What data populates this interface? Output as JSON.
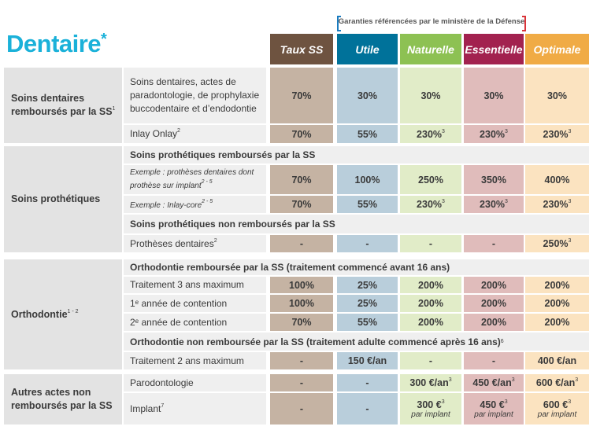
{
  "title": "Dentaire",
  "title_mark": "*",
  "bracket_label": "Garanties référencées par le ministère de la Défense",
  "columns": [
    {
      "label": "Taux SS",
      "header_color": "#6e5340",
      "cell_color": "#c5b3a3"
    },
    {
      "label": "Utile",
      "header_color": "#00729a",
      "cell_color": "#b9cedb"
    },
    {
      "label": "Naturelle",
      "header_color": "#8dc153",
      "cell_color": "#e1ecc8"
    },
    {
      "label": "Essentielle",
      "header_color": "#a2224f",
      "cell_color": "#e0bcbb"
    },
    {
      "label": "Optimale",
      "header_color": "#f0ab45",
      "cell_color": "#fbe3c0"
    }
  ],
  "sections": [
    {
      "title": "Soins dentaires remboursés par la SS",
      "sup": "1",
      "rows": [
        {
          "label": "Soins dentaires, actes de paradontologie, de prophylaxie buccodentaire et d’endodontie",
          "values": [
            {
              "v": "70%"
            },
            {
              "v": "30%"
            },
            {
              "v": "30%"
            },
            {
              "v": "30%"
            },
            {
              "v": "30%"
            }
          ]
        },
        {
          "label": "Inlay Onlay",
          "sup": "2",
          "values": [
            {
              "v": "70%"
            },
            {
              "v": "55%"
            },
            {
              "v": "230%",
              "sup": "3"
            },
            {
              "v": "230%",
              "sup": "3"
            },
            {
              "v": "230%",
              "sup": "3"
            }
          ]
        }
      ]
    },
    {
      "title": "Soins prothétiques",
      "rows": [
        {
          "sub": "Soins prothétiques remboursés par la SS"
        },
        {
          "label": "Exemple : prothèses dentaires dont prothèse sur implant",
          "sup": "2 - 5",
          "italic": true,
          "values": [
            {
              "v": "70%"
            },
            {
              "v": "100%"
            },
            {
              "v": "250%"
            },
            {
              "v": "350%"
            },
            {
              "v": "400%"
            }
          ]
        },
        {
          "label": "Exemple : Inlay-core",
          "sup": "2 - 5",
          "italic": true,
          "values": [
            {
              "v": "70%"
            },
            {
              "v": "55%"
            },
            {
              "v": "230%",
              "sup": "3"
            },
            {
              "v": "230%",
              "sup": "3"
            },
            {
              "v": "230%",
              "sup": "3"
            }
          ]
        },
        {
          "sub": "Soins prothétiques non remboursés par la SS"
        },
        {
          "label": "Prothèses dentaires",
          "sup": "2",
          "values": [
            {
              "v": "-"
            },
            {
              "v": "-"
            },
            {
              "v": "-"
            },
            {
              "v": "-"
            },
            {
              "v": "250%",
              "sup": "3"
            }
          ]
        }
      ]
    },
    {
      "title": "Orthodontie",
      "sup": "1 - 2",
      "rows": [
        {
          "sub": "Orthodontie remboursée par la SS (traitement commencé avant 16 ans)"
        },
        {
          "label": "Traitement 3 ans maximum",
          "values": [
            {
              "v": "100%"
            },
            {
              "v": "25%"
            },
            {
              "v": "200%"
            },
            {
              "v": "200%"
            },
            {
              "v": "200%"
            }
          ]
        },
        {
          "label": "1ᵉ année de contention",
          "values": [
            {
              "v": "100%"
            },
            {
              "v": "25%"
            },
            {
              "v": "200%"
            },
            {
              "v": "200%"
            },
            {
              "v": "200%"
            }
          ]
        },
        {
          "label": "2ᵉ année de contention",
          "values": [
            {
              "v": "70%"
            },
            {
              "v": "55%"
            },
            {
              "v": "200%"
            },
            {
              "v": "200%"
            },
            {
              "v": "200%"
            }
          ]
        },
        {
          "sub": "Orthodontie non remboursée par la SS (traitement adulte commencé après 16 ans)",
          "sup": "6"
        },
        {
          "label": "Traitement 2 ans maximum",
          "values": [
            {
              "v": "-"
            },
            {
              "v": "150 €/an"
            },
            {
              "v": "-"
            },
            {
              "v": "-"
            },
            {
              "v": "400 €/an"
            }
          ]
        }
      ]
    },
    {
      "title": "Autres actes non remboursés par la SS",
      "rows": [
        {
          "label": "Parodontologie",
          "values": [
            {
              "v": "-"
            },
            {
              "v": "-"
            },
            {
              "v": "300 €/an",
              "sup": "3"
            },
            {
              "v": "450 €/an",
              "sup": "3"
            },
            {
              "v": "600 €/an",
              "sup": "3"
            }
          ]
        },
        {
          "label": "Implant",
          "sup": "7",
          "values": [
            {
              "v": "-"
            },
            {
              "v": "-"
            },
            {
              "v": "300 €",
              "sup": "3",
              "note": "par implant"
            },
            {
              "v": "450 €",
              "sup": "3",
              "note": "par implant"
            },
            {
              "v": "600 €",
              "sup": "3",
              "note": "par implant"
            }
          ]
        }
      ]
    }
  ]
}
